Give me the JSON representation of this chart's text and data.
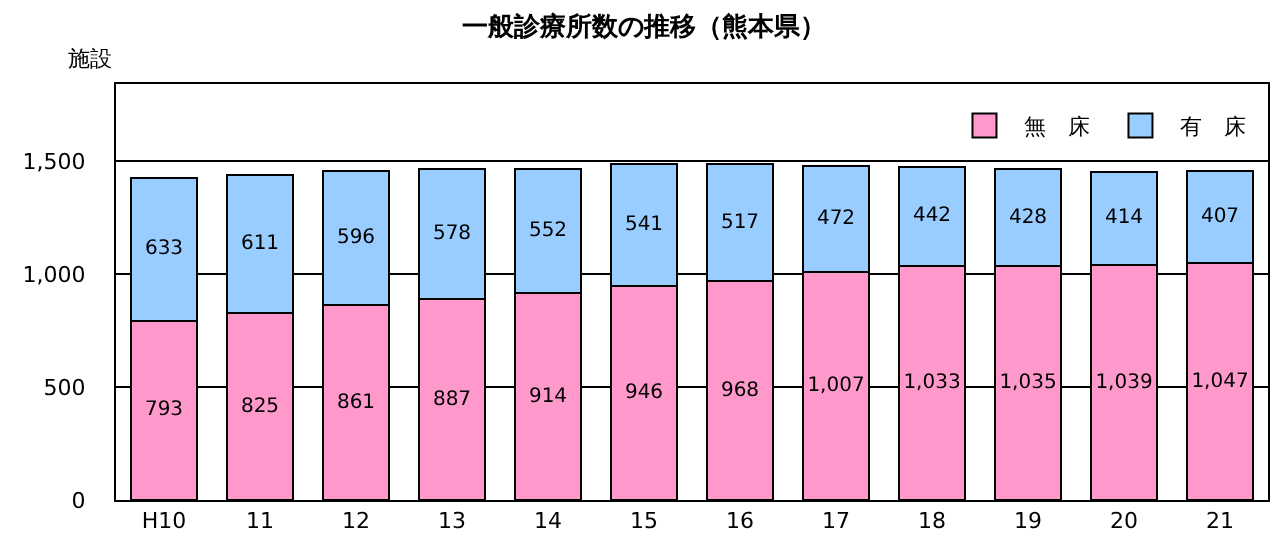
{
  "chart_data": {
    "type": "bar",
    "title": "一般診療所数の推移（熊本県）",
    "ylabel": "施設",
    "stacked": true,
    "categories": [
      "H10",
      "11",
      "12",
      "13",
      "14",
      "15",
      "16",
      "17",
      "18",
      "19",
      "20",
      "21"
    ],
    "series": [
      {
        "name": "無　床",
        "color": "#ff99cc",
        "values": [
          793,
          825,
          861,
          887,
          914,
          946,
          968,
          1007,
          1033,
          1035,
          1039,
          1047
        ],
        "value_labels": [
          "793",
          "825",
          "861",
          "887",
          "914",
          "946",
          "968",
          "1,007",
          "1,033",
          "1,035",
          "1,039",
          "1,047"
        ]
      },
      {
        "name": "有　床",
        "color": "#99ccff",
        "values": [
          633,
          611,
          596,
          578,
          552,
          541,
          517,
          472,
          442,
          428,
          414,
          407
        ],
        "value_labels": [
          "633",
          "611",
          "596",
          "578",
          "552",
          "541",
          "517",
          "472",
          "442",
          "428",
          "414",
          "407"
        ]
      }
    ],
    "ylim": [
      0,
      1840
    ],
    "yticks": [
      {
        "value": 0,
        "label": "0"
      },
      {
        "value": 500,
        "label": "500"
      },
      {
        "value": 1000,
        "label": "1,000"
      },
      {
        "value": 1500,
        "label": "1,500"
      }
    ],
    "grid": "y",
    "legend": "top right"
  }
}
